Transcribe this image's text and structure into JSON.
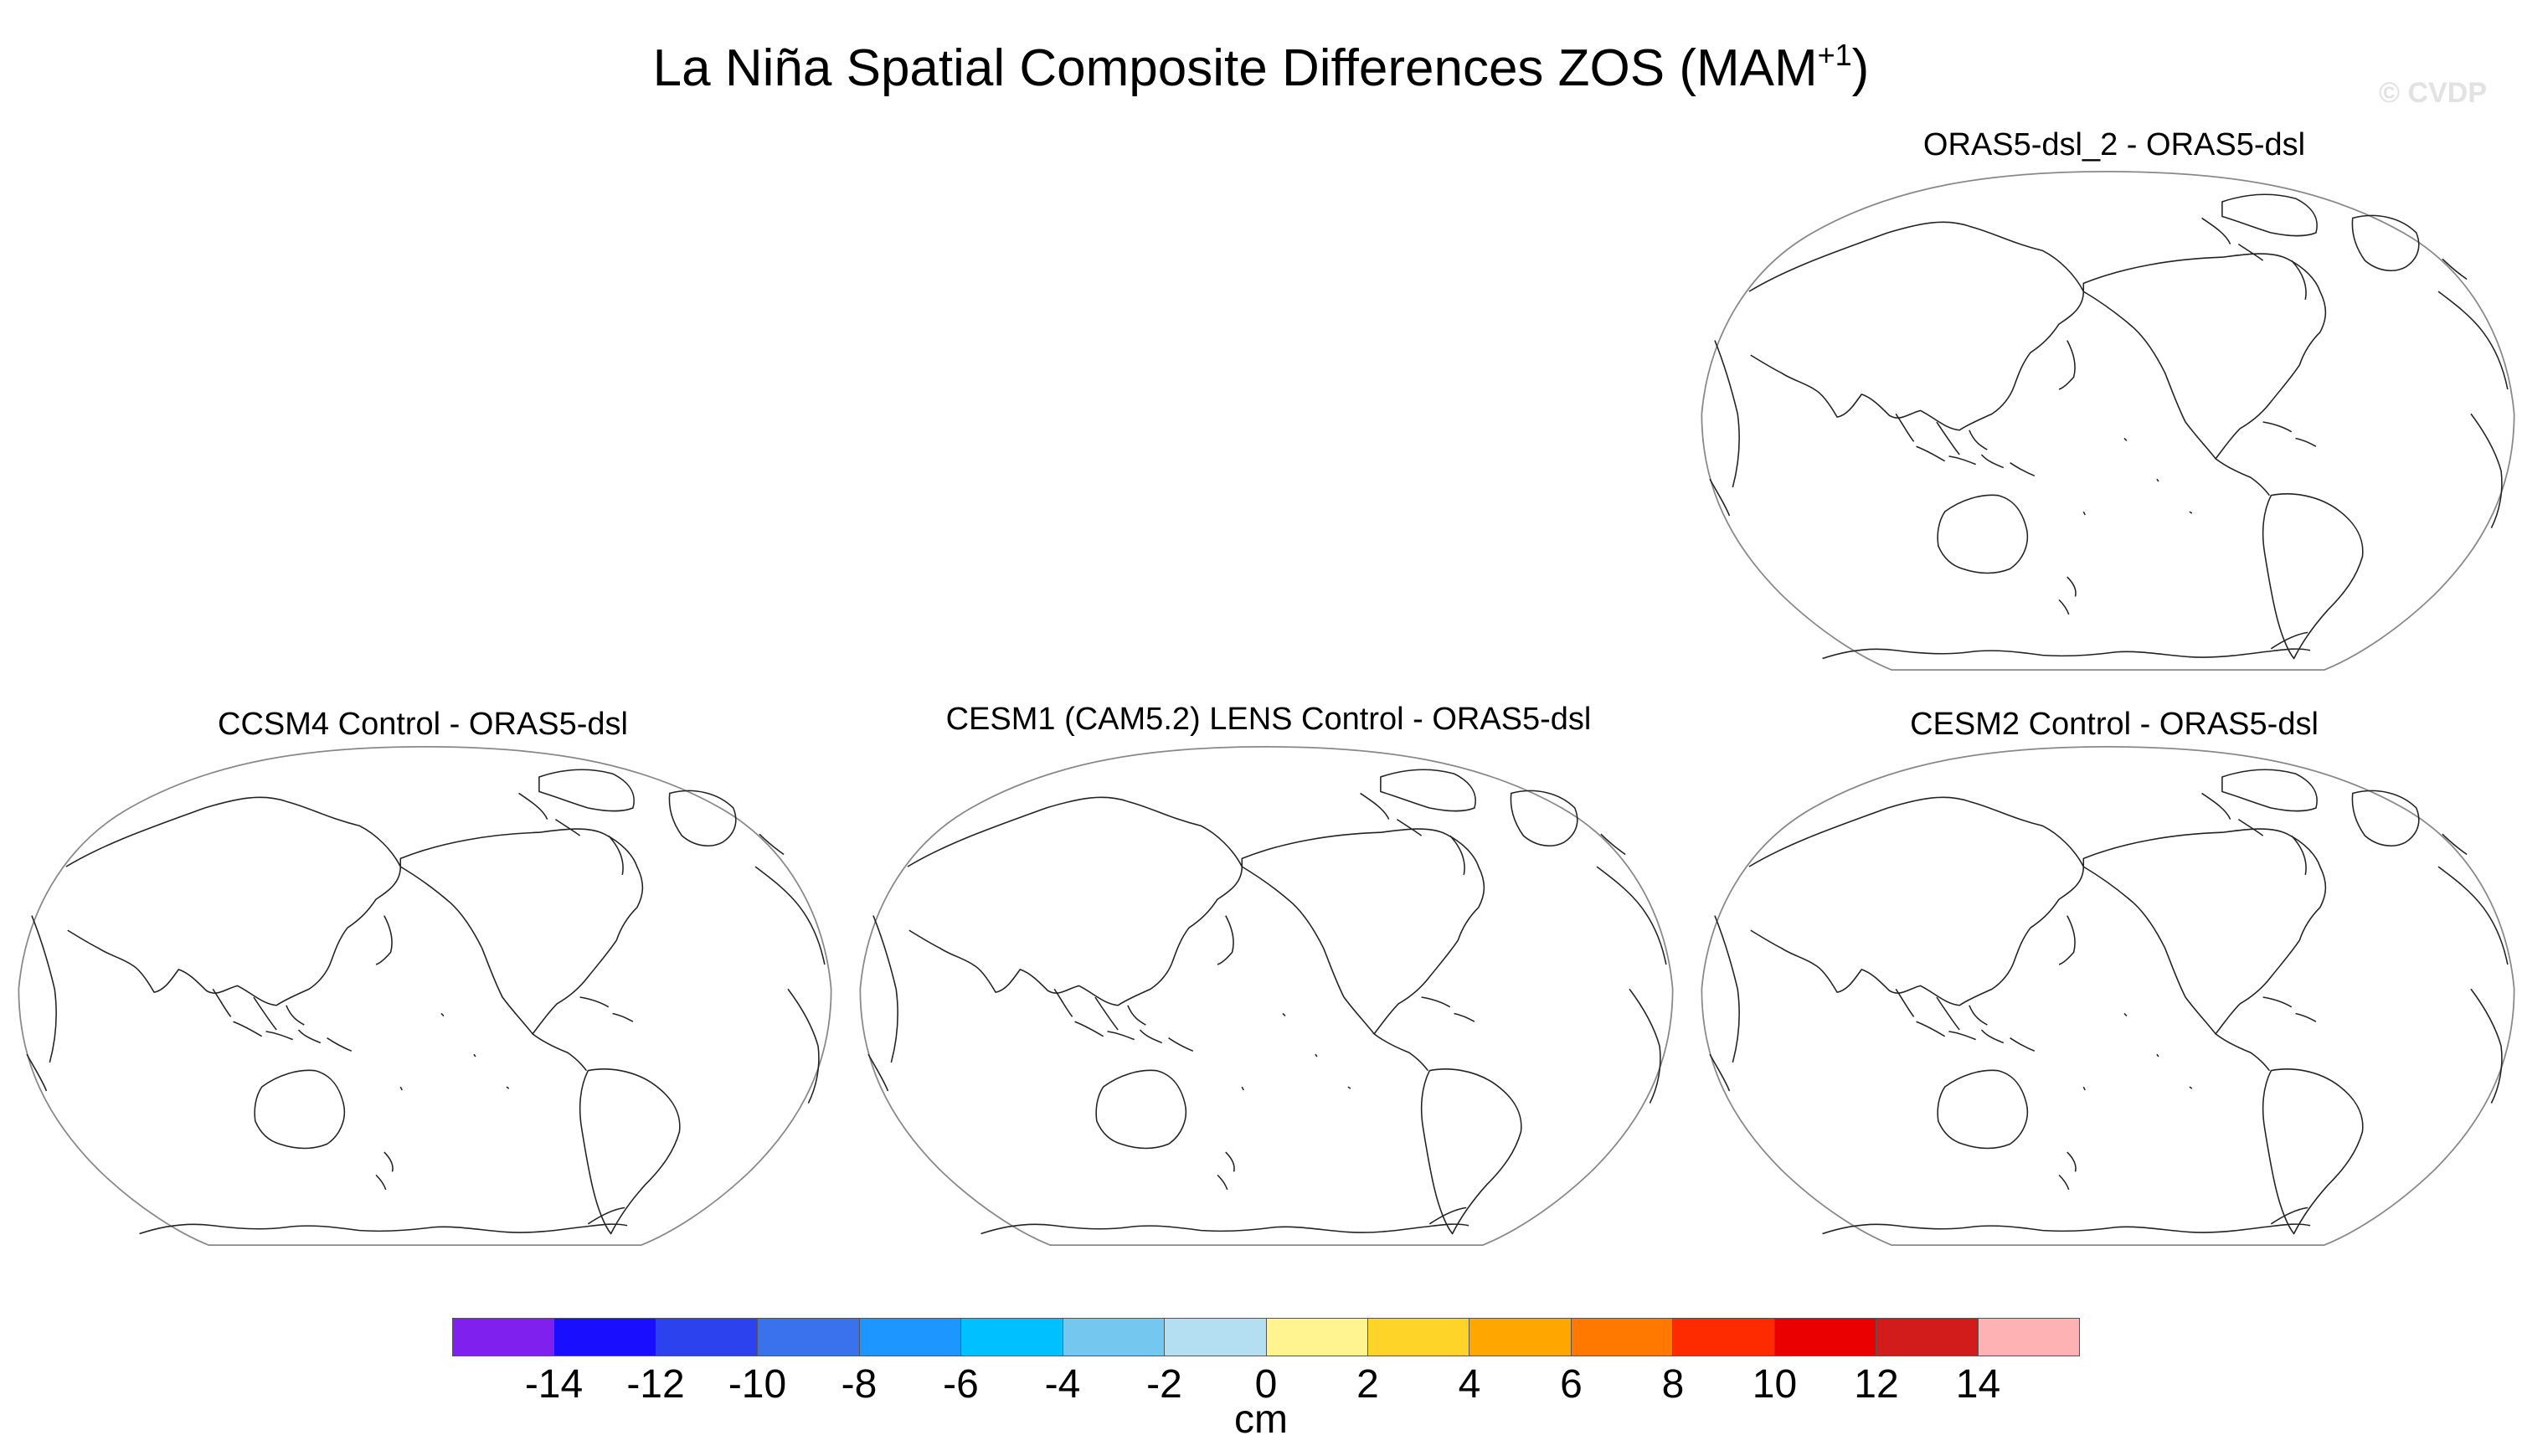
{
  "figure": {
    "title_main": "La Niña Spatial Composite Differences ZOS (MAM",
    "title_sup": "+1",
    "title_close": ")",
    "watermark": "© CVDP"
  },
  "panels": [
    {
      "id": "top-right",
      "title": "ORAS5-dsl_2 - ORAS5-dsl"
    },
    {
      "id": "bottom-left",
      "title": "CCSM4 Control - ORAS5-dsl"
    },
    {
      "id": "bottom-center",
      "title": "CESM1 (CAM5.2) LENS Control - ORAS5-dsl"
    },
    {
      "id": "bottom-right",
      "title": "CESM2 Control - ORAS5-dsl"
    }
  ],
  "colorbar": {
    "units": "cm",
    "colors": [
      "#8020ee",
      "#1a0eff",
      "#2c42ee",
      "#3a72ee",
      "#1e96ff",
      "#00c0ff",
      "#74c8f0",
      "#b4def2",
      "#fff490",
      "#ffd428",
      "#ffa600",
      "#ff7800",
      "#ff2b00",
      "#ea0000",
      "#d21c1c",
      "#ffb2b4"
    ],
    "ticks": [
      "-14",
      "-12",
      "-10",
      "-8",
      "-6",
      "-4",
      "-2",
      "0",
      "2",
      "4",
      "6",
      "8",
      "10",
      "12",
      "14"
    ]
  }
}
